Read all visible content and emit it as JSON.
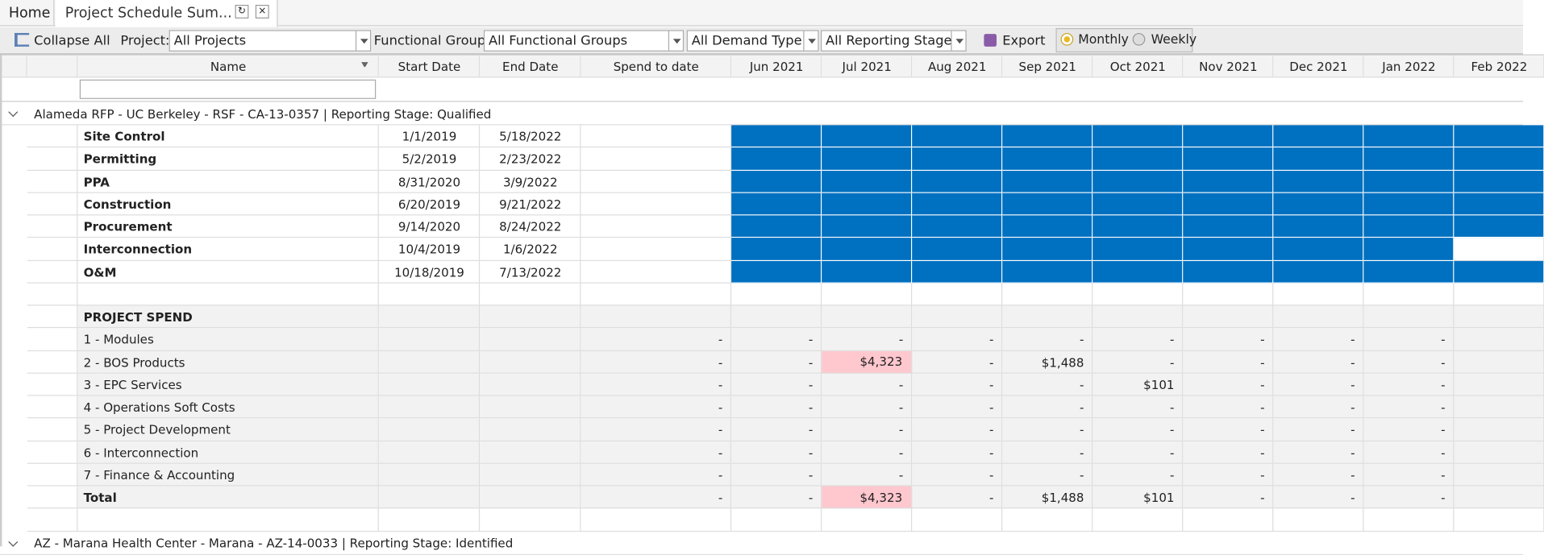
{
  "tabs": [
    "Home",
    "Project Schedule Sum..."
  ],
  "toolbar": {
    "collapse": "Collapse All",
    "project_label": "Project:",
    "project": "All Projects",
    "group_label": "Functional Group:",
    "group": "All Functional Groups",
    "demand": "All Demand Type",
    "stage": "All Reporting Stage",
    "export": "Export",
    "monthly": "Monthly",
    "weekly": "Weekly"
  },
  "columns": {
    "name": "Name",
    "start": "Start Date",
    "end": "End Date",
    "spend": "Spend to date",
    "months": [
      "Jun 2021",
      "Jul 2021",
      "Aug 2021",
      "Sep 2021",
      "Oct 2021",
      "Nov 2021",
      "Dec 2021",
      "Jan 2022",
      "Feb 2022"
    ]
  },
  "groups": [
    {
      "title": "Alameda RFP - UC Berkeley - RSF - CA-13-0357 | Reporting Stage: Qualified",
      "tasks": [
        {
          "name": "Site Control",
          "start": "1/1/2019",
          "end": "5/18/2022"
        },
        {
          "name": "Permitting",
          "start": "5/2/2019",
          "end": "2/23/2022"
        },
        {
          "name": "PPA",
          "start": "8/31/2020",
          "end": "3/9/2022"
        },
        {
          "name": "Construction",
          "start": "6/20/2019",
          "end": "9/21/2022"
        },
        {
          "name": "Procurement",
          "start": "9/14/2020",
          "end": "8/24/2022"
        },
        {
          "name": "Interconnection",
          "start": "10/4/2019",
          "end": "1/6/2022"
        },
        {
          "name": "O&M",
          "start": "10/18/2019",
          "end": "7/13/2022"
        }
      ],
      "spend_title": "PROJECT SPEND",
      "spend_rows": [
        {
          "name": "1 - Modules",
          "values": [
            "-",
            "-",
            "-",
            "-",
            "-",
            "-",
            "-",
            "-",
            "-"
          ]
        },
        {
          "name": "2 - BOS Products",
          "values": [
            "-",
            "-",
            "$4,323",
            "-",
            "$1,488",
            "-",
            "-",
            "-",
            "-"
          ],
          "highlight": [
            2
          ]
        },
        {
          "name": "3 - EPC Services",
          "values": [
            "-",
            "-",
            "-",
            "-",
            "-",
            "$101",
            "-",
            "-",
            "-"
          ]
        },
        {
          "name": "4 - Operations Soft Costs",
          "values": [
            "-",
            "-",
            "-",
            "-",
            "-",
            "-",
            "-",
            "-",
            "-"
          ]
        },
        {
          "name": "5 - Project Development",
          "values": [
            "-",
            "-",
            "-",
            "-",
            "-",
            "-",
            "-",
            "-",
            "-"
          ]
        },
        {
          "name": "6 - Interconnection",
          "values": [
            "-",
            "-",
            "-",
            "-",
            "-",
            "-",
            "-",
            "-",
            "-"
          ]
        },
        {
          "name": "7 - Finance & Accounting",
          "values": [
            "-",
            "-",
            "-",
            "-",
            "-",
            "-",
            "-",
            "-",
            "-"
          ]
        }
      ],
      "total": {
        "name": "Total",
        "values": [
          "-",
          "-",
          "$4,323",
          "-",
          "$1,488",
          "$101",
          "-",
          "-",
          "-"
        ],
        "highlight": [
          2
        ]
      }
    },
    {
      "title": "AZ - Marana Health Center - Marana - AZ-14-0033 | Reporting Stage: Identified"
    }
  ]
}
